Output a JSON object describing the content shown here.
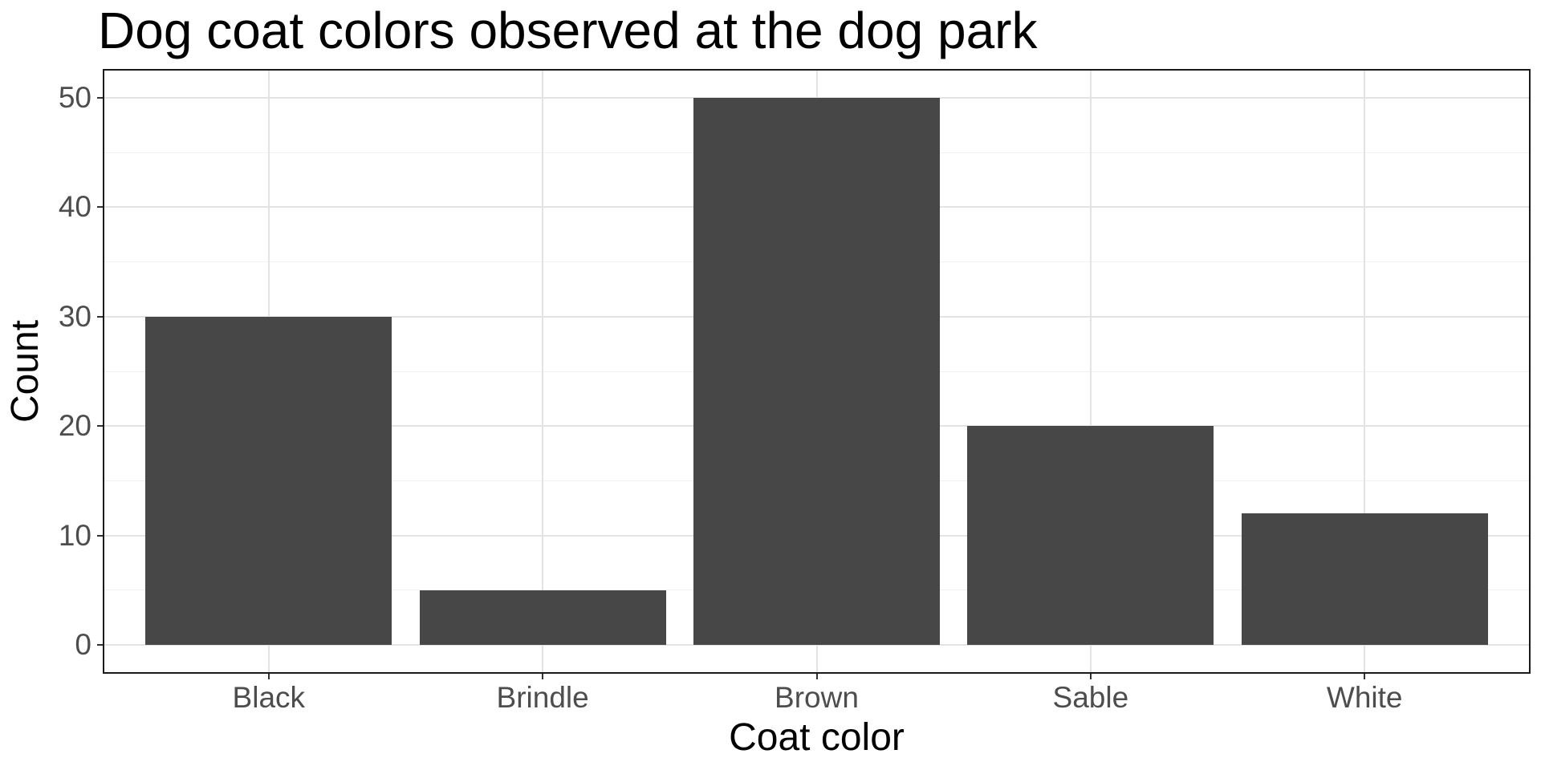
{
  "chart_data": {
    "type": "bar",
    "title": "Dog coat colors observed at the dog park",
    "xlabel": "Coat color",
    "ylabel": "Count",
    "categories": [
      "Black",
      "Brindle",
      "Brown",
      "Sable",
      "White"
    ],
    "values": [
      30,
      5,
      50,
      20,
      12
    ],
    "yticks": [
      0,
      10,
      20,
      30,
      40,
      50
    ],
    "ylim": [
      0,
      50
    ],
    "grid": "horizontal major+minor, vertical major at category centers",
    "legend_position": "none",
    "bar_fill": "#474747"
  },
  "theme": {
    "background": "#ffffff",
    "panel_background": "#ffffff",
    "panel_border": "#1a1a1a",
    "grid_major": "#e3e3e3",
    "grid_minor": "#f0f0f0",
    "tick_mark_color": "#333333",
    "tick_label_color": "#4d4d4d",
    "axis_title_color": "#000000",
    "title_color": "#000000"
  }
}
